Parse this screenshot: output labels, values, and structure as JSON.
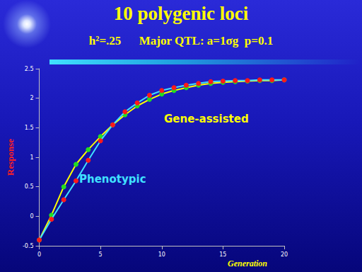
{
  "chart_data": {
    "type": "line",
    "title": "10 polygenic loci",
    "subtitle": "h²=.25      Major QTL: a=1σg  p=0.1",
    "x_label": "Generation",
    "y_label": "Response",
    "x": [
      0,
      1,
      2,
      3,
      4,
      5,
      6,
      7,
      8,
      9,
      10,
      11,
      12,
      13,
      14,
      15,
      16,
      17,
      18,
      19,
      20
    ],
    "series": [
      {
        "name": "Gene-assisted",
        "color": "#ffff00",
        "marker": "circle",
        "values": [
          -0.4,
          0.02,
          0.5,
          0.88,
          1.13,
          1.35,
          1.55,
          1.72,
          1.87,
          1.98,
          2.07,
          2.13,
          2.18,
          2.22,
          2.25,
          2.27,
          2.28,
          2.29,
          2.3,
          2.3,
          2.31
        ]
      },
      {
        "name": "Phenotypic",
        "color": "#40e0ff",
        "marker": "circle",
        "values": [
          -0.4,
          -0.05,
          0.28,
          0.6,
          0.95,
          1.28,
          1.55,
          1.77,
          1.92,
          2.05,
          2.13,
          2.18,
          2.22,
          2.25,
          2.28,
          2.29,
          2.3,
          2.3,
          2.31,
          2.31,
          2.31
        ]
      }
    ],
    "xlim": [
      0,
      20
    ],
    "xticks": [
      0,
      5,
      10,
      15,
      20
    ],
    "ylim": [
      -0.5,
      2.5
    ],
    "yticks": [
      -0.5,
      0,
      0.5,
      1,
      1.5,
      2,
      2.5
    ],
    "grid": false
  }
}
